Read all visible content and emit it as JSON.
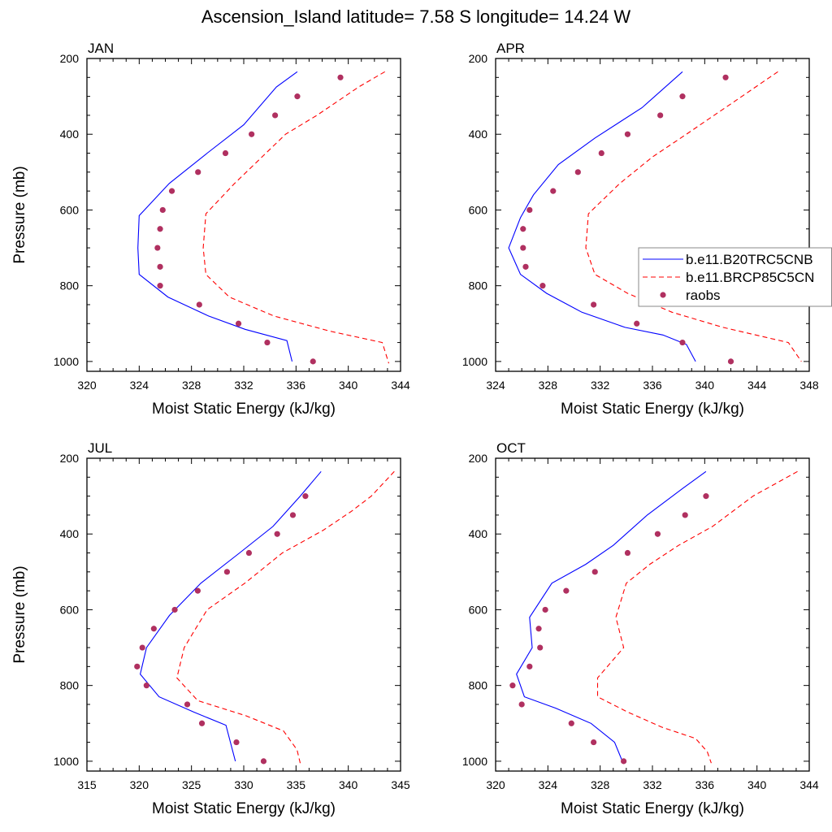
{
  "title": "Ascension_Island  latitude= 7.58 S longitude= 14.24 W",
  "colors": {
    "model1": "#0000ff",
    "model2": "#ff0000",
    "obs": "#b03060"
  },
  "chart_data": [
    {
      "type": "line",
      "panel_label": "JAN",
      "xlabel": "Moist Static Energy (kJ/kg)",
      "ylabel": "Pressure (mb)",
      "xlim": [
        320,
        344
      ],
      "xticks": [
        320,
        324,
        328,
        332,
        336,
        340,
        344
      ],
      "ylim": [
        200,
        1000
      ],
      "yticks": [
        200,
        400,
        600,
        800,
        1000
      ],
      "y_reversed": true,
      "series": [
        {
          "name": "b.e11.B20TRC5CNB",
          "style": "solid",
          "points": [
            [
              336.1,
              235
            ],
            [
              334.5,
              275
            ],
            [
              332,
              375
            ],
            [
              329.2,
              450
            ],
            [
              326.3,
              530
            ],
            [
              324,
              615
            ],
            [
              323.9,
              700
            ],
            [
              324,
              770
            ],
            [
              326.2,
              830
            ],
            [
              329.3,
              880
            ],
            [
              332.1,
              915
            ],
            [
              335.3,
              945
            ],
            [
              335.7,
              1000
            ]
          ]
        },
        {
          "name": "b.e11.BRCP85C5CN",
          "style": "dashed",
          "points": [
            [
              342.8,
              235
            ],
            [
              340.8,
              275
            ],
            [
              337.6,
              350
            ],
            [
              335.2,
              400
            ],
            [
              333.7,
              450
            ],
            [
              331.3,
              530
            ],
            [
              329.1,
              610
            ],
            [
              328.9,
              700
            ],
            [
              329.1,
              770
            ],
            [
              330.9,
              830
            ],
            [
              334.3,
              880
            ],
            [
              338.6,
              920
            ],
            [
              342.6,
              950
            ],
            [
              343.1,
              1005
            ]
          ]
        },
        {
          "name": "raobs",
          "style": "marker",
          "points": [
            [
              339.4,
              250
            ],
            [
              336.1,
              300
            ],
            [
              334.4,
              350
            ],
            [
              332.6,
              400
            ],
            [
              330.6,
              450
            ],
            [
              328.5,
              500
            ],
            [
              326.5,
              550
            ],
            [
              325.8,
              600
            ],
            [
              325.6,
              650
            ],
            [
              325.4,
              700
            ],
            [
              325.6,
              750
            ],
            [
              325.6,
              800
            ],
            [
              328.6,
              850
            ],
            [
              331.6,
              900
            ],
            [
              333.8,
              950
            ],
            [
              337.3,
              1000
            ]
          ]
        }
      ]
    },
    {
      "type": "line",
      "panel_label": "APR",
      "xlabel": "Moist Static Energy (kJ/kg)",
      "ylabel": "",
      "xlim": [
        324,
        348
      ],
      "xticks": [
        324,
        328,
        332,
        336,
        340,
        344,
        348
      ],
      "ylim": [
        200,
        1000
      ],
      "yticks": [
        200,
        400,
        600,
        800,
        1000
      ],
      "y_reversed": true,
      "series": [
        {
          "name": "b.e11.B20TRC5CNB",
          "style": "solid",
          "points": [
            [
              338.3,
              235
            ],
            [
              335.2,
              330
            ],
            [
              331.6,
              410
            ],
            [
              328.8,
              480
            ],
            [
              326.9,
              560
            ],
            [
              325.9,
              620
            ],
            [
              325,
              700
            ],
            [
              325.9,
              770
            ],
            [
              327.9,
              820
            ],
            [
              330.6,
              870
            ],
            [
              333.9,
              910
            ],
            [
              336.8,
              930
            ],
            [
              338.6,
              955
            ],
            [
              339.3,
              1000
            ]
          ]
        },
        {
          "name": "b.e11.BRCP85C5CN",
          "style": "dashed",
          "points": [
            [
              345.6,
              235
            ],
            [
              342,
              320
            ],
            [
              338.6,
              400
            ],
            [
              336,
              460
            ],
            [
              333.5,
              530
            ],
            [
              331.1,
              610
            ],
            [
              330.9,
              700
            ],
            [
              331.6,
              770
            ],
            [
              334.1,
              820
            ],
            [
              337.5,
              870
            ],
            [
              341.4,
              910
            ],
            [
              346.4,
              950
            ],
            [
              347.4,
              1000
            ]
          ]
        },
        {
          "name": "raobs",
          "style": "marker",
          "points": [
            [
              341.6,
              250
            ],
            [
              338.3,
              300
            ],
            [
              336.6,
              350
            ],
            [
              334.1,
              400
            ],
            [
              332.1,
              450
            ],
            [
              330.3,
              500
            ],
            [
              328.4,
              550
            ],
            [
              326.6,
              600
            ],
            [
              326.1,
              650
            ],
            [
              326.1,
              700
            ],
            [
              326.3,
              750
            ],
            [
              327.6,
              800
            ],
            [
              331.5,
              850
            ],
            [
              334.8,
              900
            ],
            [
              338.3,
              950
            ],
            [
              342,
              1000
            ]
          ]
        }
      ]
    },
    {
      "type": "line",
      "panel_label": "JUL",
      "xlabel": "Moist Static Energy (kJ/kg)",
      "ylabel": "Pressure (mb)",
      "xlim": [
        315,
        345
      ],
      "xticks": [
        315,
        320,
        325,
        330,
        335,
        340,
        345
      ],
      "ylim": [
        200,
        1000
      ],
      "yticks": [
        200,
        400,
        600,
        800,
        1000
      ],
      "y_reversed": true,
      "series": [
        {
          "name": "b.e11.B20TRC5CNB",
          "style": "solid",
          "points": [
            [
              337.4,
              235
            ],
            [
              335.4,
              300
            ],
            [
              332.8,
              380
            ],
            [
              329.6,
              450
            ],
            [
              325.9,
              530
            ],
            [
              322.9,
              615
            ],
            [
              320.7,
              700
            ],
            [
              320.1,
              770
            ],
            [
              321.9,
              830
            ],
            [
              325.2,
              870
            ],
            [
              328.3,
              905
            ],
            [
              329.2,
              1000
            ]
          ]
        },
        {
          "name": "b.e11.BRCP85C5CN",
          "style": "dashed",
          "points": [
            [
              344.4,
              235
            ],
            [
              342.2,
              300
            ],
            [
              340.3,
              340
            ],
            [
              337.6,
              390
            ],
            [
              333.7,
              450
            ],
            [
              330.1,
              530
            ],
            [
              326.5,
              600
            ],
            [
              325.4,
              650
            ],
            [
              324.3,
              700
            ],
            [
              323.6,
              780
            ],
            [
              325.6,
              840
            ],
            [
              330.2,
              880
            ],
            [
              333.8,
              920
            ],
            [
              335.1,
              970
            ],
            [
              335.4,
              1005
            ]
          ]
        },
        {
          "name": "raobs",
          "style": "marker",
          "points": [
            [
              335.9,
              300
            ],
            [
              334.7,
              350
            ],
            [
              333.2,
              400
            ],
            [
              330.5,
              450
            ],
            [
              328.4,
              500
            ],
            [
              325.6,
              550
            ],
            [
              323.4,
              600
            ],
            [
              321.4,
              650
            ],
            [
              320.3,
              700
            ],
            [
              319.8,
              750
            ],
            [
              320.7,
              800
            ],
            [
              324.6,
              850
            ],
            [
              326,
              900
            ],
            [
              329.3,
              950
            ],
            [
              331.9,
              1000
            ]
          ]
        }
      ]
    },
    {
      "type": "line",
      "panel_label": "OCT",
      "xlabel": "Moist Static Energy (kJ/kg)",
      "ylabel": "",
      "xlim": [
        320,
        344
      ],
      "xticks": [
        320,
        324,
        328,
        332,
        336,
        340,
        344
      ],
      "ylim": [
        200,
        1000
      ],
      "yticks": [
        200,
        400,
        600,
        800,
        1000
      ],
      "y_reversed": true,
      "series": [
        {
          "name": "b.e11.B20TRC5CNB",
          "style": "solid",
          "points": [
            [
              336.1,
              235
            ],
            [
              334.3,
              280
            ],
            [
              331.6,
              350
            ],
            [
              329,
              430
            ],
            [
              326.9,
              480
            ],
            [
              324.3,
              530
            ],
            [
              322.6,
              620
            ],
            [
              322.8,
              700
            ],
            [
              321.6,
              770
            ],
            [
              322.2,
              830
            ],
            [
              324.6,
              860
            ],
            [
              327.3,
              900
            ],
            [
              329.1,
              950
            ],
            [
              329.7,
              1000
            ]
          ]
        },
        {
          "name": "b.e11.BRCP85C5CN",
          "style": "dashed",
          "points": [
            [
              343.1,
              235
            ],
            [
              339.7,
              300
            ],
            [
              336.6,
              380
            ],
            [
              334,
              430
            ],
            [
              331.8,
              480
            ],
            [
              330,
              530
            ],
            [
              329.2,
              620
            ],
            [
              329.8,
              700
            ],
            [
              327.8,
              780
            ],
            [
              327.8,
              830
            ],
            [
              330.1,
              870
            ],
            [
              332.7,
              910
            ],
            [
              335.3,
              940
            ],
            [
              336.2,
              975
            ],
            [
              336.5,
              1005
            ]
          ]
        },
        {
          "name": "raobs",
          "style": "marker",
          "points": [
            [
              336.1,
              300
            ],
            [
              334.5,
              350
            ],
            [
              332.4,
              400
            ],
            [
              330.1,
              450
            ],
            [
              327.6,
              500
            ],
            [
              325.4,
              550
            ],
            [
              323.8,
              600
            ],
            [
              323.3,
              650
            ],
            [
              323.4,
              700
            ],
            [
              322.6,
              750
            ],
            [
              321.3,
              800
            ],
            [
              322,
              850
            ],
            [
              325.8,
              900
            ],
            [
              327.5,
              950
            ],
            [
              329.8,
              1000
            ]
          ]
        }
      ]
    }
  ],
  "legend": {
    "entries": [
      "b.e11.B20TRC5CNB",
      "b.e11.BRCP85C5CN",
      "raobs"
    ]
  }
}
